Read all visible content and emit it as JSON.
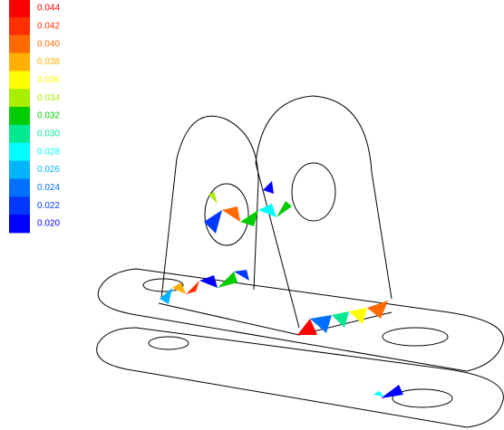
{
  "legend": {
    "entries": [
      {
        "label": "0.044",
        "color": "#ff0000"
      },
      {
        "label": "0.042",
        "color": "#ff3000"
      },
      {
        "label": "0.040",
        "color": "#ff6a00"
      },
      {
        "label": "0.038",
        "color": "#ffb000"
      },
      {
        "label": "0.036",
        "color": "#ffff00"
      },
      {
        "label": "0.034",
        "color": "#a8ee00"
      },
      {
        "label": "0.032",
        "color": "#00cc00"
      },
      {
        "label": "0.030",
        "color": "#00e890"
      },
      {
        "label": "0.028",
        "color": "#00ffff"
      },
      {
        "label": "0.026",
        "color": "#00b4ff"
      },
      {
        "label": "0.024",
        "color": "#0070ff"
      },
      {
        "label": "0.022",
        "color": "#0038ff"
      },
      {
        "label": "0.020",
        "color": "#0000ff"
      }
    ]
  }
}
